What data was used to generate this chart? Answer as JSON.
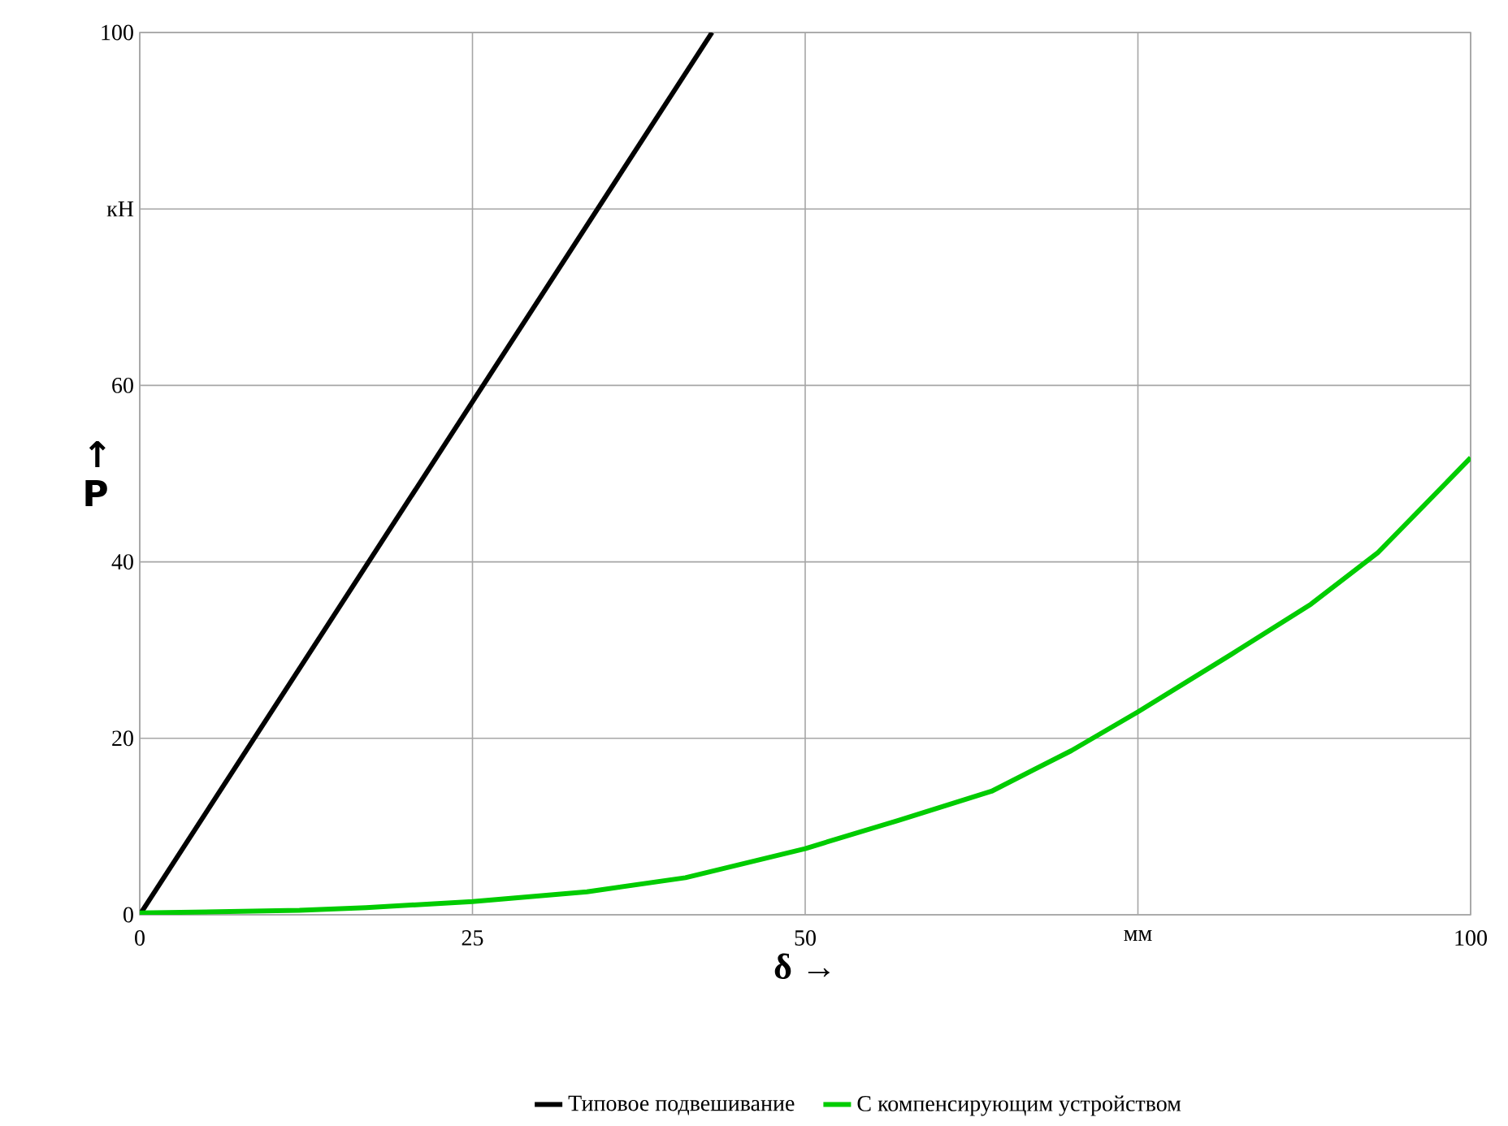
{
  "chart_data": {
    "type": "line",
    "xlabel": "δ →",
    "ylabel": "↑ P",
    "xlim": [
      0,
      100
    ],
    "ylim": [
      0,
      100
    ],
    "xticks": [
      0,
      25,
      50,
      {
        "value": 75,
        "label": "мм"
      },
      100
    ],
    "yticks": [
      0,
      20,
      40,
      60,
      {
        "value": 80,
        "label": "кН"
      },
      100
    ],
    "grid": true,
    "legend": "bottom",
    "marker": "none",
    "line_style": "solid",
    "series": [
      {
        "name": "Типовое подвешивание",
        "color": "#000000",
        "x": [
          0,
          43
        ],
        "values": [
          0,
          100
        ]
      },
      {
        "name": "С компенсирующим устройством",
        "color": "#00cc00",
        "x": [
          0,
          12,
          17,
          25,
          33.6,
          41,
          50,
          57,
          64,
          70,
          75,
          82,
          88,
          93,
          100
        ],
        "values": [
          0.2,
          0.5,
          0.8,
          1.5,
          2.6,
          4.2,
          7.5,
          10.7,
          14,
          18.6,
          23,
          29.5,
          35.2,
          41,
          51.8
        ]
      }
    ]
  }
}
